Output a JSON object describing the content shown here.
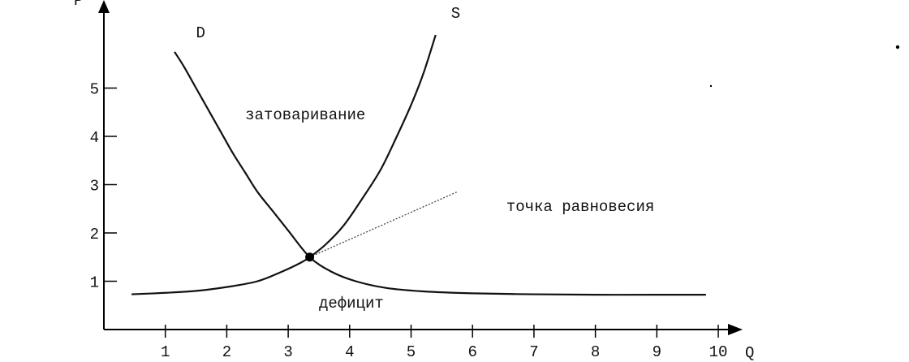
{
  "chart_data": {
    "type": "line",
    "title": "",
    "xlabel": "Q",
    "ylabel": "P",
    "xlim": [
      0,
      10.5
    ],
    "ylim": [
      0,
      6.5
    ],
    "x_ticks": [
      1,
      2,
      3,
      4,
      5,
      6,
      7,
      8,
      9,
      10
    ],
    "y_ticks": [
      1,
      2,
      3,
      4,
      5
    ],
    "grid": false,
    "legend": "none",
    "series": [
      {
        "name": "D",
        "points": [
          [
            1.15,
            5.75
          ],
          [
            1.3,
            5.45
          ],
          [
            1.5,
            5.0
          ],
          [
            1.7,
            4.55
          ],
          [
            1.9,
            4.1
          ],
          [
            2.1,
            3.65
          ],
          [
            2.3,
            3.25
          ],
          [
            2.5,
            2.85
          ],
          [
            2.75,
            2.45
          ],
          [
            3.0,
            2.05
          ],
          [
            3.35,
            1.5
          ],
          [
            3.7,
            1.2
          ],
          [
            4.1,
            1.0
          ],
          [
            4.6,
            0.86
          ],
          [
            5.2,
            0.79
          ],
          [
            6.0,
            0.75
          ],
          [
            7.0,
            0.73
          ],
          [
            8.0,
            0.72
          ],
          [
            9.0,
            0.72
          ],
          [
            9.8,
            0.72
          ]
        ]
      },
      {
        "name": "S",
        "points": [
          [
            0.45,
            0.73
          ],
          [
            1.0,
            0.76
          ],
          [
            1.5,
            0.8
          ],
          [
            2.0,
            0.88
          ],
          [
            2.5,
            1.0
          ],
          [
            2.9,
            1.2
          ],
          [
            3.2,
            1.38
          ],
          [
            3.35,
            1.5
          ],
          [
            3.6,
            1.75
          ],
          [
            3.9,
            2.15
          ],
          [
            4.2,
            2.7
          ],
          [
            4.5,
            3.3
          ],
          [
            4.75,
            3.95
          ],
          [
            5.0,
            4.65
          ],
          [
            5.2,
            5.3
          ],
          [
            5.4,
            6.1
          ]
        ]
      }
    ],
    "equilibrium": {
      "x": 3.35,
      "y": 1.5
    },
    "annotations": [
      {
        "id": "surplus",
        "text": "затоваривание",
        "x": 2.3,
        "y": 4.35
      },
      {
        "id": "shortage",
        "text": "дефицит",
        "x": 3.5,
        "y": 0.45
      },
      {
        "id": "equilibrium",
        "text": "точка равновесия",
        "x": 6.55,
        "y": 2.45,
        "leader_to": [
          5.75,
          2.85
        ]
      }
    ],
    "series_label_positions": {
      "D": {
        "x": 1.5,
        "y": 6.05
      },
      "S": {
        "x": 5.65,
        "y": 6.45
      }
    }
  }
}
